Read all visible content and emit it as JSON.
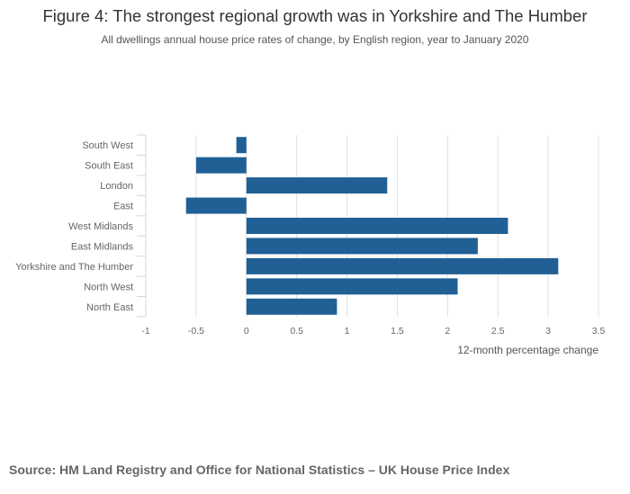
{
  "chart_data": {
    "type": "bar",
    "orientation": "horizontal",
    "title": "Figure 4: The strongest regional growth was in Yorkshire and The Humber",
    "subtitle": "All dwellings annual house price rates of change, by English region, year to January 2020",
    "xlabel": "12-month percentage change",
    "ylabel": "",
    "categories": [
      "South West",
      "South East",
      "London",
      "East",
      "West Midlands",
      "East Midlands",
      "Yorkshire and The Humber",
      "North West",
      "North East"
    ],
    "values": [
      -0.1,
      -0.5,
      1.4,
      -0.6,
      2.6,
      2.3,
      3.1,
      2.1,
      0.9
    ],
    "xlim": [
      -1,
      3.5
    ],
    "xticks": [
      "-1",
      "-0.5",
      "0",
      "0.5",
      "1",
      "1.5",
      "2",
      "2.5",
      "3",
      "3.5"
    ],
    "grid": true,
    "bar_color": "#206095",
    "source": "Source: HM Land Registry and Office for National Statistics – UK House Price Index"
  }
}
